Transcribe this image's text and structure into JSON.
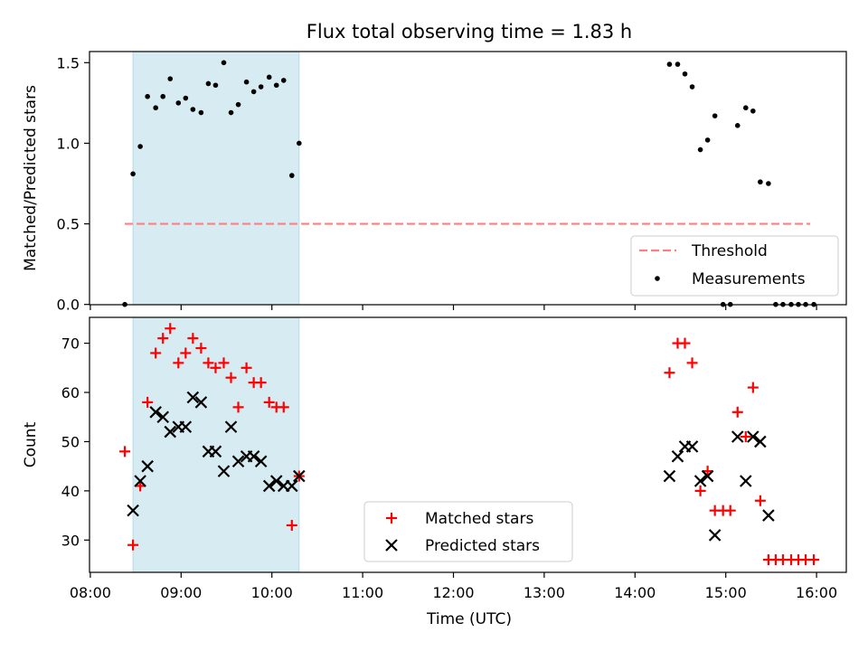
{
  "chart_data": {
    "type": "scatter",
    "title": "Flux total observing time = 1.83 h",
    "xlabel": "Time (UTC)",
    "x_ticks": [
      "08:00",
      "09:00",
      "10:00",
      "11:00",
      "12:00",
      "13:00",
      "14:00",
      "15:00",
      "16:00"
    ],
    "shaded_interval_hours": [
      8.47,
      10.3
    ],
    "colors": {
      "shade": "#add8e6",
      "threshold": "#ff7f7f",
      "measurements": "#000000",
      "matched": "#ff0000",
      "predicted": "#000000"
    },
    "panels": [
      {
        "id": "ratio",
        "ylabel": "Matched/Predicted stars",
        "ylim": [
          0,
          1.58
        ],
        "y_ticks": [
          "0.0",
          "0.5",
          "1.0",
          "1.5"
        ],
        "legend": [
          "Threshold",
          "Measurements"
        ],
        "threshold": {
          "value": 0.5,
          "x_range_hours": [
            8.38,
            15.93
          ]
        },
        "measurements": {
          "x": [
            8.38,
            8.47,
            8.55,
            8.63,
            8.72,
            8.8,
            8.88,
            8.97,
            9.05,
            9.13,
            9.22,
            9.3,
            9.38,
            9.47,
            9.55,
            9.63,
            9.72,
            9.8,
            9.88,
            9.97,
            10.05,
            10.13,
            10.22,
            10.3,
            14.38,
            14.47,
            14.55,
            14.63,
            14.72,
            14.8,
            14.88,
            14.97,
            15.05,
            15.13,
            15.22,
            15.3,
            15.38,
            15.47,
            15.55,
            15.63,
            15.72,
            15.8,
            15.88,
            15.97
          ],
          "y": [
            0.0,
            0.81,
            0.98,
            1.29,
            1.22,
            1.29,
            1.4,
            1.25,
            1.28,
            1.21,
            1.19,
            1.37,
            1.36,
            1.5,
            1.19,
            1.24,
            1.38,
            1.32,
            1.35,
            1.41,
            1.36,
            1.39,
            0.8,
            1.0,
            1.49,
            1.49,
            1.43,
            1.35,
            0.96,
            1.02,
            1.17,
            0.0,
            0.0,
            1.11,
            1.22,
            1.2,
            0.76,
            0.75,
            0.0,
            0.0,
            0.0,
            0.0,
            0.0,
            0.0
          ]
        }
      },
      {
        "id": "counts",
        "ylabel": "Count",
        "ylim": [
          23.5,
          75.5
        ],
        "y_ticks": [
          "30",
          "40",
          "50",
          "60",
          "70"
        ],
        "legend": [
          "Matched stars",
          "Predicted stars"
        ],
        "series": [
          {
            "name": "Matched stars",
            "x": [
              8.38,
              8.47,
              8.55,
              8.63,
              8.72,
              8.8,
              8.88,
              8.97,
              9.05,
              9.13,
              9.22,
              9.3,
              9.38,
              9.47,
              9.55,
              9.63,
              9.72,
              9.8,
              9.88,
              9.97,
              10.05,
              10.13,
              10.22,
              10.3,
              14.38,
              14.47,
              14.55,
              14.63,
              14.72,
              14.8,
              14.88,
              14.97,
              15.05,
              15.13,
              15.22,
              15.3,
              15.38,
              15.47,
              15.55,
              15.63,
              15.72,
              15.8,
              15.88,
              15.97
            ],
            "values": [
              48,
              29,
              41,
              58,
              68,
              71,
              73,
              66,
              68,
              71,
              69,
              66,
              65,
              66,
              63,
              57,
              65,
              62,
              62,
              58,
              57,
              57,
              33,
              43,
              64,
              70,
              70,
              66,
              40,
              44,
              36,
              36,
              36,
              56,
              51,
              61,
              38,
              26,
              26,
              26,
              26,
              26,
              26,
              26
            ]
          },
          {
            "name": "Predicted stars",
            "x": [
              8.47,
              8.55,
              8.63,
              8.72,
              8.8,
              8.88,
              8.97,
              9.05,
              9.13,
              9.22,
              9.3,
              9.38,
              9.47,
              9.55,
              9.63,
              9.72,
              9.8,
              9.88,
              9.97,
              10.05,
              10.13,
              10.22,
              10.3,
              14.38,
              14.47,
              14.55,
              14.63,
              14.72,
              14.8,
              14.88,
              15.13,
              15.22,
              15.3,
              15.38,
              15.47
            ],
            "values": [
              36,
              42,
              45,
              56,
              55,
              52,
              53,
              53,
              59,
              58,
              48,
              48,
              44,
              53,
              46,
              47,
              47,
              46,
              41,
              42,
              41,
              41,
              43,
              43,
              47,
              49,
              49,
              42,
              43,
              31,
              51,
              42,
              51,
              50,
              35
            ]
          }
        ]
      }
    ]
  }
}
